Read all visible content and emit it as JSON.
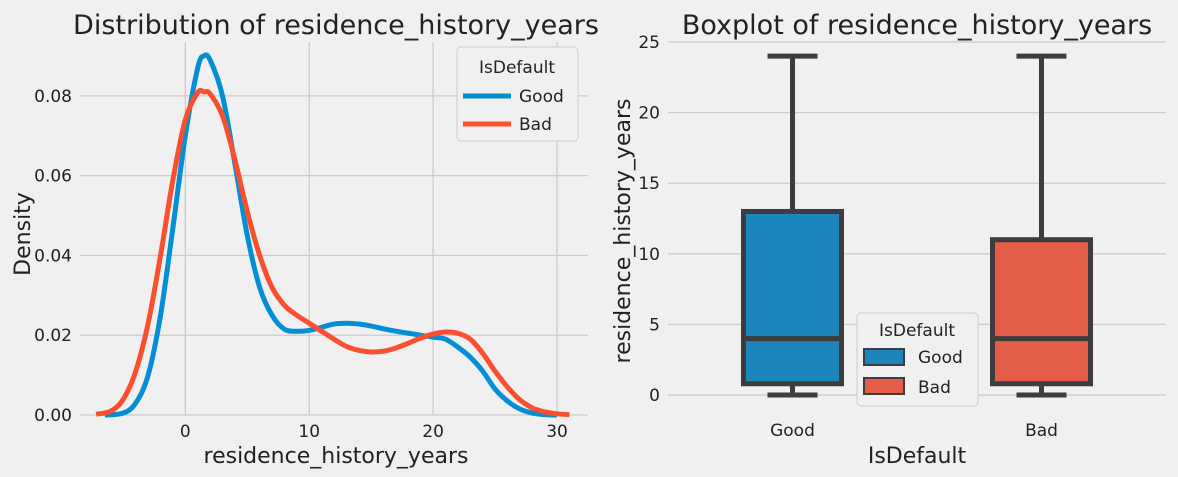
{
  "chart_data": [
    {
      "type": "kde",
      "title": "Distribution of residence_history_years",
      "xlabel": "residence_history_years",
      "ylabel": "Density",
      "xlim": [
        -8.5,
        32.5
      ],
      "ylim": [
        0,
        0.0935
      ],
      "xticks": [
        0,
        10,
        20,
        30
      ],
      "xtick_labels": [
        "0",
        "10",
        "20",
        "30"
      ],
      "yticks": [
        0,
        0.02,
        0.04,
        0.06,
        0.08
      ],
      "ytick_labels": [
        "0.00",
        "0.02",
        "0.04",
        "0.06",
        "0.08"
      ],
      "grid": true,
      "legend": {
        "title": "IsDefault",
        "placement": "top-right"
      },
      "series": [
        {
          "name": "Good",
          "color": "#008fd5",
          "x": [
            -6.5,
            -5,
            -4,
            -3,
            -2,
            -1,
            0,
            1,
            1.5,
            2,
            3,
            4,
            5,
            6,
            7,
            8,
            9,
            10,
            11,
            12,
            13,
            14,
            15,
            16,
            17,
            18,
            19,
            20,
            21,
            22,
            23,
            24,
            25,
            26,
            27,
            28,
            29,
            30
          ],
          "y": [
            0.0,
            0.0005,
            0.003,
            0.01,
            0.025,
            0.047,
            0.07,
            0.087,
            0.09,
            0.089,
            0.08,
            0.063,
            0.045,
            0.032,
            0.025,
            0.0215,
            0.021,
            0.0212,
            0.022,
            0.0228,
            0.023,
            0.0228,
            0.0223,
            0.0216,
            0.021,
            0.0205,
            0.02,
            0.0195,
            0.019,
            0.017,
            0.0145,
            0.011,
            0.0065,
            0.0035,
            0.0015,
            0.0005,
            0.0001,
            0.0
          ]
        },
        {
          "name": "Bad",
          "color": "#fc4f30",
          "x": [
            -7.2,
            -6,
            -5,
            -4,
            -3,
            -2,
            -1,
            0,
            1,
            1.5,
            2,
            3,
            4,
            5,
            6,
            7,
            8,
            9,
            10,
            11,
            12,
            13,
            14,
            15,
            16,
            17,
            18,
            19,
            20,
            21,
            22,
            23,
            24,
            25,
            26,
            27,
            28,
            29,
            30,
            31
          ],
          "y": [
            0.0002,
            0.001,
            0.004,
            0.011,
            0.023,
            0.04,
            0.059,
            0.074,
            0.0808,
            0.081,
            0.0805,
            0.075,
            0.064,
            0.051,
            0.04,
            0.032,
            0.0275,
            0.025,
            0.023,
            0.021,
            0.019,
            0.0172,
            0.0162,
            0.0158,
            0.016,
            0.0168,
            0.018,
            0.0193,
            0.0203,
            0.0208,
            0.0205,
            0.019,
            0.0155,
            0.011,
            0.007,
            0.0038,
            0.0018,
            0.0008,
            0.0003,
            0.0001
          ]
        }
      ]
    },
    {
      "type": "box",
      "title": "Boxplot of residence_history_years",
      "xlabel": "IsDefault",
      "ylabel": "residence_history_years",
      "categories": [
        "Good",
        "Bad"
      ],
      "ylim": [
        -1.2,
        25
      ],
      "yticks": [
        0,
        5,
        10,
        15,
        20,
        25
      ],
      "ytick_labels": [
        "0",
        "5",
        "10",
        "15",
        "20",
        "25"
      ],
      "grid": true,
      "legend": {
        "title": "IsDefault",
        "placement": "lower-center"
      },
      "boxes": [
        {
          "name": "Good",
          "color": "#1c86bd",
          "whisker_low": 0,
          "q1": 0.8,
          "median": 4,
          "q3": 13,
          "whisker_high": 24
        },
        {
          "name": "Bad",
          "color": "#e35d48",
          "whisker_low": 0,
          "q1": 0.8,
          "median": 4,
          "q3": 11,
          "whisker_high": 24
        }
      ]
    }
  ]
}
